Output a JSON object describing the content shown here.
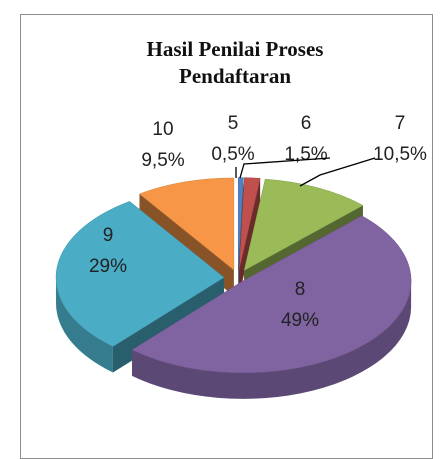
{
  "chart_data": {
    "type": "pie3d",
    "title": "Hasil Penilai Proses Pendaftaran",
    "categories": [
      "5",
      "6",
      "7",
      "8",
      "9",
      "10"
    ],
    "values": [
      0.5,
      1.5,
      10.5,
      49,
      29,
      9.5
    ],
    "value_labels": [
      "0,5%",
      "1,5%",
      "10,5%",
      "49%",
      "29%",
      "9,5%"
    ],
    "colors": [
      "#4f81bd",
      "#c0504d",
      "#9bbb59",
      "#8064a2",
      "#4bacc6",
      "#f79646"
    ]
  }
}
